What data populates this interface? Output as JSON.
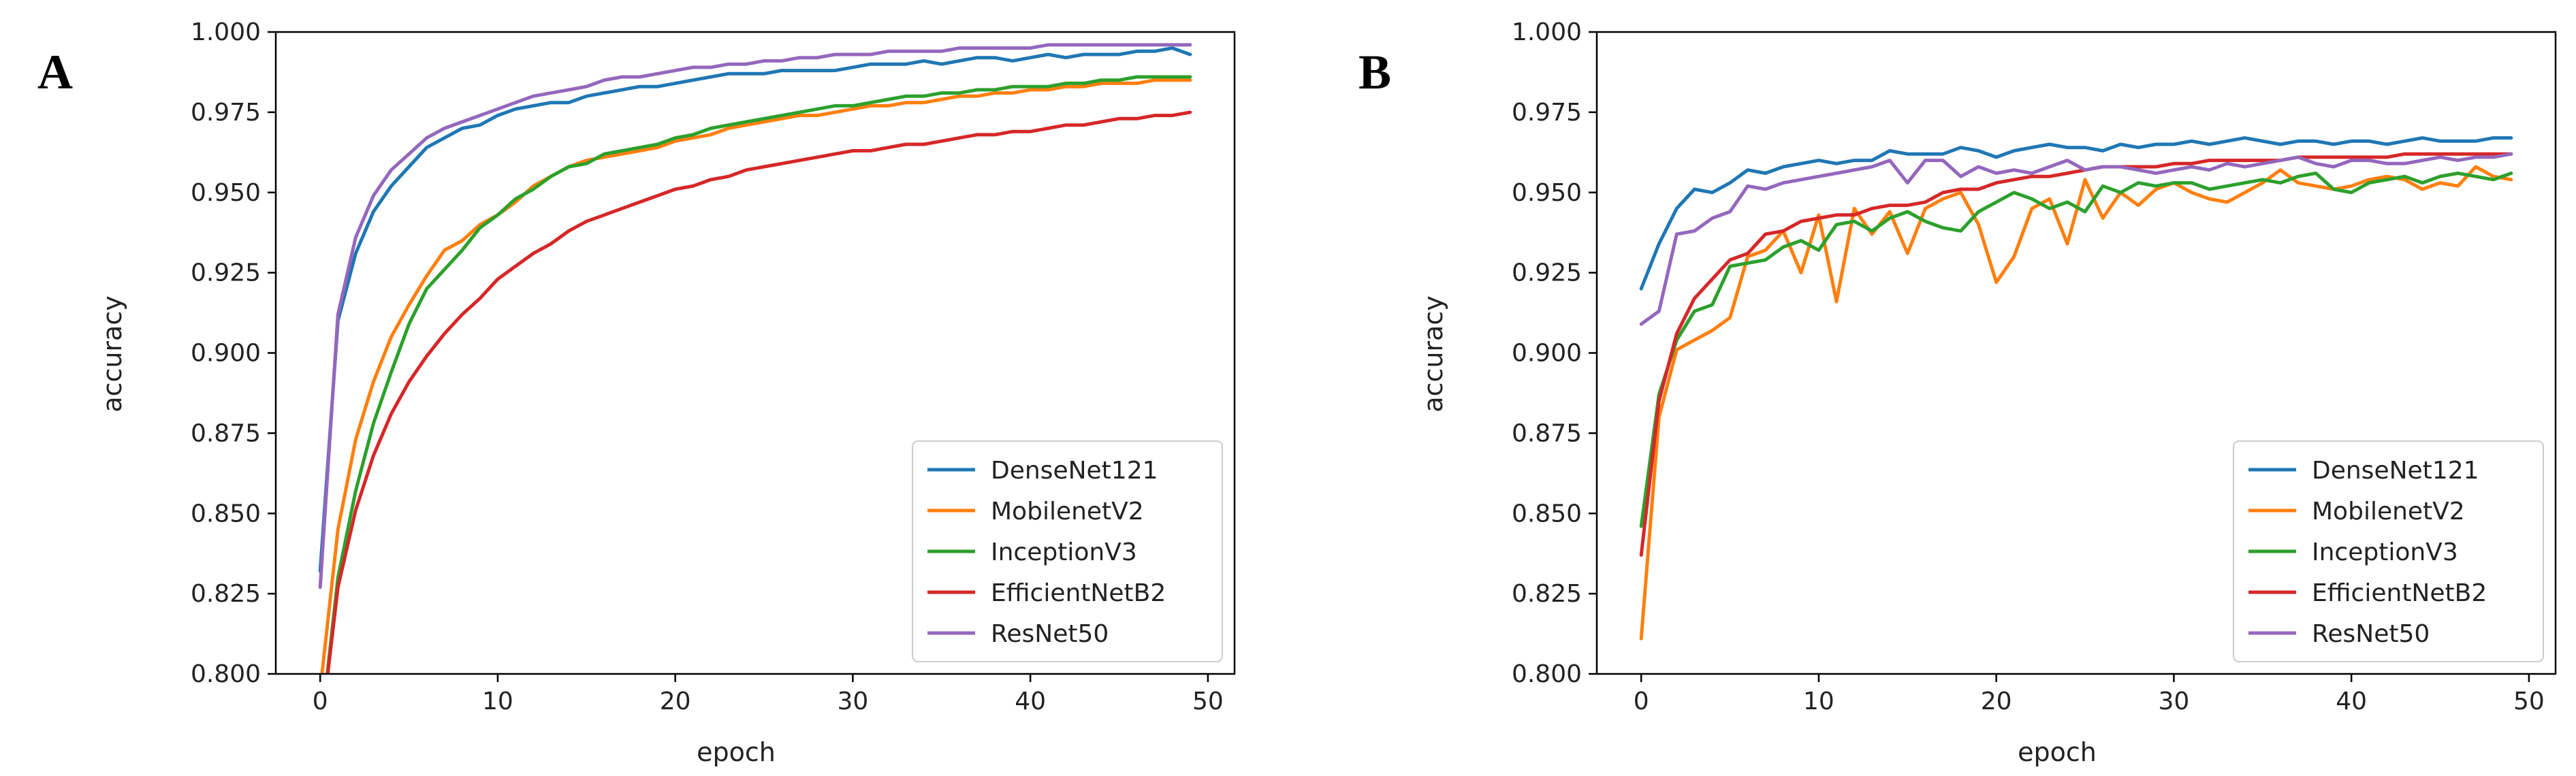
{
  "panels": [
    {
      "letter": "A",
      "chart_data": {
        "type": "line",
        "xlabel": "epoch",
        "ylabel": "accuracy",
        "xlim": [
          -2.5,
          51.5
        ],
        "ylim": [
          0.8,
          1.0
        ],
        "xticks": [
          0,
          10,
          20,
          30,
          40,
          50
        ],
        "yticks": [
          0.8,
          0.825,
          0.85,
          0.875,
          0.9,
          0.925,
          0.95,
          0.975,
          1.0
        ],
        "ytick_labels": [
          "0.800",
          "0.825",
          "0.850",
          "0.875",
          "0.900",
          "0.925",
          "0.950",
          "0.975",
          "1.000"
        ],
        "grid": false,
        "legend": "lower-right",
        "x": [
          0,
          1,
          2,
          3,
          4,
          5,
          6,
          7,
          8,
          9,
          10,
          11,
          12,
          13,
          14,
          15,
          16,
          17,
          18,
          19,
          20,
          21,
          22,
          23,
          24,
          25,
          26,
          27,
          28,
          29,
          30,
          31,
          32,
          33,
          34,
          35,
          36,
          37,
          38,
          39,
          40,
          41,
          42,
          43,
          44,
          45,
          46,
          47,
          48,
          49
        ],
        "series": [
          {
            "name": "DenseNet121",
            "color": "#1f77b4",
            "values": [
              0.832,
              0.91,
              0.931,
              0.944,
              0.952,
              0.958,
              0.964,
              0.967,
              0.97,
              0.971,
              0.974,
              0.976,
              0.977,
              0.978,
              0.978,
              0.98,
              0.981,
              0.982,
              0.983,
              0.983,
              0.984,
              0.985,
              0.986,
              0.987,
              0.987,
              0.987,
              0.988,
              0.988,
              0.988,
              0.988,
              0.989,
              0.99,
              0.99,
              0.99,
              0.991,
              0.99,
              0.991,
              0.992,
              0.992,
              0.991,
              0.992,
              0.993,
              0.992,
              0.993,
              0.993,
              0.993,
              0.994,
              0.994,
              0.995,
              0.993
            ]
          },
          {
            "name": "MobilenetV2",
            "color": "#ff7f0e",
            "values": [
              0.795,
              0.845,
              0.873,
              0.891,
              0.905,
              0.915,
              0.924,
              0.932,
              0.935,
              0.94,
              0.943,
              0.947,
              0.952,
              0.955,
              0.958,
              0.96,
              0.961,
              0.962,
              0.963,
              0.964,
              0.966,
              0.967,
              0.968,
              0.97,
              0.971,
              0.972,
              0.973,
              0.974,
              0.974,
              0.975,
              0.976,
              0.977,
              0.977,
              0.978,
              0.978,
              0.979,
              0.98,
              0.98,
              0.981,
              0.981,
              0.982,
              0.982,
              0.983,
              0.983,
              0.984,
              0.984,
              0.984,
              0.985,
              0.985,
              0.985
            ]
          },
          {
            "name": "InceptionV3",
            "color": "#2ca02c",
            "values": [
              0.78,
              0.83,
              0.857,
              0.878,
              0.894,
              0.909,
              0.92,
              0.926,
              0.932,
              0.939,
              0.943,
              0.948,
              0.951,
              0.955,
              0.958,
              0.959,
              0.962,
              0.963,
              0.964,
              0.965,
              0.967,
              0.968,
              0.97,
              0.971,
              0.972,
              0.973,
              0.974,
              0.975,
              0.976,
              0.977,
              0.977,
              0.978,
              0.979,
              0.98,
              0.98,
              0.981,
              0.981,
              0.982,
              0.982,
              0.983,
              0.983,
              0.983,
              0.984,
              0.984,
              0.985,
              0.985,
              0.986,
              0.986,
              0.986,
              0.986
            ]
          },
          {
            "name": "EfficientNetB2",
            "color": "#d62728",
            "values": [
              0.78,
              0.827,
              0.851,
              0.868,
              0.881,
              0.891,
              0.899,
              0.906,
              0.912,
              0.917,
              0.923,
              0.927,
              0.931,
              0.934,
              0.938,
              0.941,
              0.943,
              0.945,
              0.947,
              0.949,
              0.951,
              0.952,
              0.954,
              0.955,
              0.957,
              0.958,
              0.959,
              0.96,
              0.961,
              0.962,
              0.963,
              0.963,
              0.964,
              0.965,
              0.965,
              0.966,
              0.967,
              0.968,
              0.968,
              0.969,
              0.969,
              0.97,
              0.971,
              0.971,
              0.972,
              0.973,
              0.973,
              0.974,
              0.974,
              0.975
            ]
          },
          {
            "name": "ResNet50",
            "color": "#9467bd",
            "values": [
              0.827,
              0.912,
              0.936,
              0.949,
              0.957,
              0.962,
              0.967,
              0.97,
              0.972,
              0.974,
              0.976,
              0.978,
              0.98,
              0.981,
              0.982,
              0.983,
              0.985,
              0.986,
              0.986,
              0.987,
              0.988,
              0.989,
              0.989,
              0.99,
              0.99,
              0.991,
              0.991,
              0.992,
              0.992,
              0.993,
              0.993,
              0.993,
              0.994,
              0.994,
              0.994,
              0.994,
              0.995,
              0.995,
              0.995,
              0.995,
              0.995,
              0.996,
              0.996,
              0.996,
              0.996,
              0.996,
              0.996,
              0.996,
              0.996,
              0.996
            ]
          }
        ]
      }
    },
    {
      "letter": "B",
      "chart_data": {
        "type": "line",
        "xlabel": "epoch",
        "ylabel": "accuracy",
        "xlim": [
          -2.5,
          51.5
        ],
        "ylim": [
          0.8,
          1.0
        ],
        "xticks": [
          0,
          10,
          20,
          30,
          40,
          50
        ],
        "yticks": [
          0.8,
          0.825,
          0.85,
          0.875,
          0.9,
          0.925,
          0.95,
          0.975,
          1.0
        ],
        "ytick_labels": [
          "0.800",
          "0.825",
          "0.850",
          "0.875",
          "0.900",
          "0.925",
          "0.950",
          "0.975",
          "1.000"
        ],
        "grid": false,
        "legend": "lower-right",
        "x": [
          0,
          1,
          2,
          3,
          4,
          5,
          6,
          7,
          8,
          9,
          10,
          11,
          12,
          13,
          14,
          15,
          16,
          17,
          18,
          19,
          20,
          21,
          22,
          23,
          24,
          25,
          26,
          27,
          28,
          29,
          30,
          31,
          32,
          33,
          34,
          35,
          36,
          37,
          38,
          39,
          40,
          41,
          42,
          43,
          44,
          45,
          46,
          47,
          48,
          49
        ],
        "series": [
          {
            "name": "DenseNet121",
            "color": "#1f77b4",
            "values": [
              0.92,
              0.934,
              0.945,
              0.951,
              0.95,
              0.953,
              0.957,
              0.956,
              0.958,
              0.959,
              0.96,
              0.959,
              0.96,
              0.96,
              0.963,
              0.962,
              0.962,
              0.962,
              0.964,
              0.963,
              0.961,
              0.963,
              0.964,
              0.965,
              0.964,
              0.964,
              0.963,
              0.965,
              0.964,
              0.965,
              0.965,
              0.966,
              0.965,
              0.966,
              0.967,
              0.966,
              0.965,
              0.966,
              0.966,
              0.965,
              0.966,
              0.966,
              0.965,
              0.966,
              0.967,
              0.966,
              0.966,
              0.966,
              0.967,
              0.967
            ]
          },
          {
            "name": "MobilenetV2",
            "color": "#ff7f0e",
            "values": [
              0.811,
              0.88,
              0.901,
              0.904,
              0.907,
              0.911,
              0.93,
              0.932,
              0.938,
              0.925,
              0.943,
              0.916,
              0.945,
              0.937,
              0.944,
              0.931,
              0.945,
              0.948,
              0.95,
              0.94,
              0.922,
              0.93,
              0.945,
              0.948,
              0.934,
              0.954,
              0.942,
              0.95,
              0.946,
              0.951,
              0.953,
              0.95,
              0.948,
              0.947,
              0.95,
              0.953,
              0.957,
              0.953,
              0.952,
              0.951,
              0.952,
              0.954,
              0.955,
              0.954,
              0.951,
              0.953,
              0.952,
              0.958,
              0.955,
              0.954
            ]
          },
          {
            "name": "InceptionV3",
            "color": "#2ca02c",
            "values": [
              0.846,
              0.887,
              0.904,
              0.913,
              0.915,
              0.927,
              0.928,
              0.929,
              0.933,
              0.935,
              0.932,
              0.94,
              0.941,
              0.938,
              0.942,
              0.944,
              0.941,
              0.939,
              0.938,
              0.944,
              0.947,
              0.95,
              0.948,
              0.945,
              0.947,
              0.944,
              0.952,
              0.95,
              0.953,
              0.952,
              0.953,
              0.953,
              0.951,
              0.952,
              0.953,
              0.954,
              0.953,
              0.955,
              0.956,
              0.951,
              0.95,
              0.953,
              0.954,
              0.955,
              0.953,
              0.955,
              0.956,
              0.955,
              0.954,
              0.956
            ]
          },
          {
            "name": "EfficientNetB2",
            "color": "#d62728",
            "values": [
              0.837,
              0.885,
              0.906,
              0.917,
              0.923,
              0.929,
              0.931,
              0.937,
              0.938,
              0.941,
              0.942,
              0.943,
              0.943,
              0.945,
              0.946,
              0.946,
              0.947,
              0.95,
              0.951,
              0.951,
              0.953,
              0.954,
              0.955,
              0.955,
              0.956,
              0.957,
              0.958,
              0.958,
              0.958,
              0.958,
              0.959,
              0.959,
              0.96,
              0.96,
              0.96,
              0.96,
              0.96,
              0.961,
              0.961,
              0.961,
              0.961,
              0.961,
              0.961,
              0.962,
              0.962,
              0.962,
              0.962,
              0.962,
              0.962,
              0.962
            ]
          },
          {
            "name": "ResNet50",
            "color": "#9467bd",
            "values": [
              0.909,
              0.913,
              0.937,
              0.938,
              0.942,
              0.944,
              0.952,
              0.951,
              0.953,
              0.954,
              0.955,
              0.956,
              0.957,
              0.958,
              0.96,
              0.953,
              0.96,
              0.96,
              0.955,
              0.958,
              0.956,
              0.957,
              0.956,
              0.958,
              0.96,
              0.957,
              0.958,
              0.958,
              0.957,
              0.956,
              0.957,
              0.958,
              0.957,
              0.959,
              0.958,
              0.959,
              0.96,
              0.961,
              0.959,
              0.958,
              0.96,
              0.96,
              0.959,
              0.959,
              0.96,
              0.961,
              0.96,
              0.961,
              0.961,
              0.962
            ]
          }
        ]
      }
    }
  ]
}
